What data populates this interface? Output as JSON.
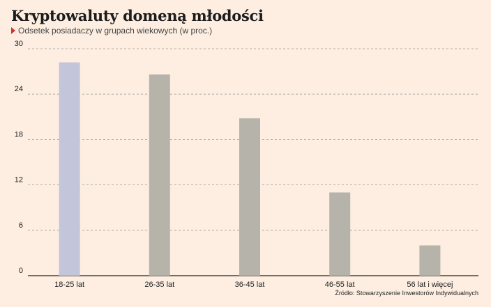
{
  "title": "Kryptowaluty domeną młodości",
  "subtitle": "Odsetek posiadaczy w grupach wiekowych (w proc.)",
  "source": "Źródło: Stowarzyszenie Inwestorów Indywidualnych",
  "colors": {
    "highlight": "#c3c6da",
    "bar": "#b6b4aa",
    "marker": "#d9332b",
    "background": "#fdeee1"
  },
  "chart_data": {
    "type": "bar",
    "title": "Kryptowaluty domeną młodości",
    "subtitle": "Odsetek posiadaczy w grupach wiekowych (w proc.)",
    "xlabel": "",
    "ylabel": "",
    "categories": [
      "18-25 lat",
      "26-35 lat",
      "36-45 lat",
      "46-55 lat",
      "56 lat i więcej"
    ],
    "values": [
      28.2,
      26.6,
      20.8,
      11.0,
      4.0
    ],
    "highlight_index": 0,
    "ylim": [
      0,
      30
    ],
    "yticks": [
      "0",
      "6",
      "12",
      "18",
      "24",
      "30"
    ],
    "grid": true
  }
}
